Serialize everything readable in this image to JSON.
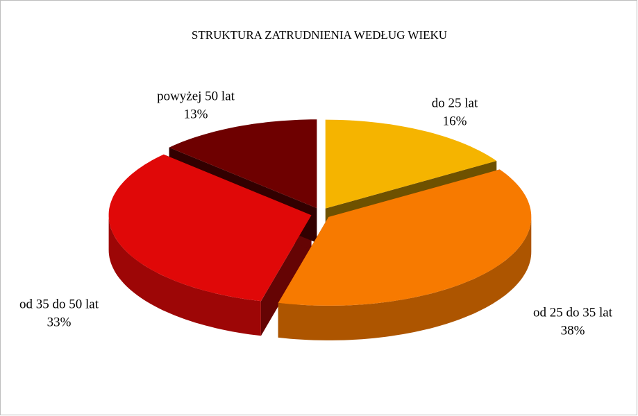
{
  "chart_data": {
    "type": "pie3d",
    "title": "STRUKTURA ZATRUDNIENIA WEDŁUG WIEKU",
    "categories": [
      "do 25 lat",
      "od 25 do 35 lat",
      "od 35 do 50 lat",
      "powyżej 50 lat"
    ],
    "values": [
      16,
      38,
      33,
      13
    ],
    "value_labels": [
      "16%",
      "38%",
      "33%",
      "13%"
    ],
    "colors": [
      "#f5b400",
      "#f77a00",
      "#e00808",
      "#6e0000"
    ]
  }
}
